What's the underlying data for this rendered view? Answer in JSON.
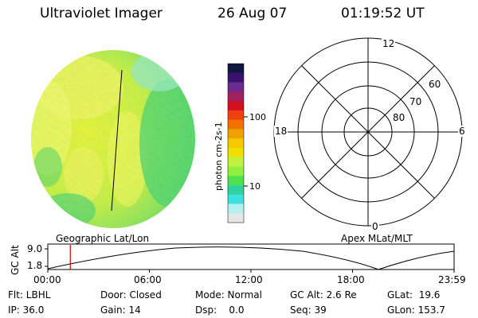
{
  "header": {
    "instrument": "Ultraviolet Imager",
    "date": "26 Aug 07",
    "time": "01:19:52 UT"
  },
  "colorbar": {
    "unit_label": "photon cm-2s-1",
    "ticks": [
      "100",
      "10"
    ],
    "colors": [
      "#101840",
      "#3a1070",
      "#6a2a90",
      "#a02060",
      "#d01020",
      "#f04010",
      "#f07000",
      "#f0a000",
      "#f5c800",
      "#f0e000",
      "#c0f040",
      "#90f040",
      "#50e050",
      "#30d0a0",
      "#40e0e0",
      "#b0f0f0",
      "#e6e6e6"
    ]
  },
  "polar_plot": {
    "labels": {
      "top": "12",
      "left": "18",
      "right": "6",
      "bottom": "0"
    },
    "ring_labels": [
      "60",
      "70",
      "80"
    ]
  },
  "altitude_strip": {
    "left_label": "Geographic Lat/Lon",
    "right_label": "Apex MLat/MLT",
    "y_axis_label": "GC Alt",
    "y_ticks": [
      "9.0",
      "1.8"
    ],
    "x_ticks": [
      "00:00",
      "06:00",
      "12:00",
      "18:00",
      "23:59"
    ],
    "marker_hours": 1.33,
    "marker_color": "#cc0000",
    "colors": {
      "accent": "#cc0000"
    }
  },
  "status": {
    "flt": "Flt: LBHL",
    "ip": "IP: 36.0",
    "door": "Door: Closed",
    "gain": "Gain: 14",
    "mode": "Mode: Normal",
    "dsp": "Dsp:    0.0",
    "gc_alt": "GC Alt: 2.6 Re",
    "seq": "Seq: 39",
    "glat": "GLat:  19.6",
    "glon": "GLon: 153.7"
  }
}
